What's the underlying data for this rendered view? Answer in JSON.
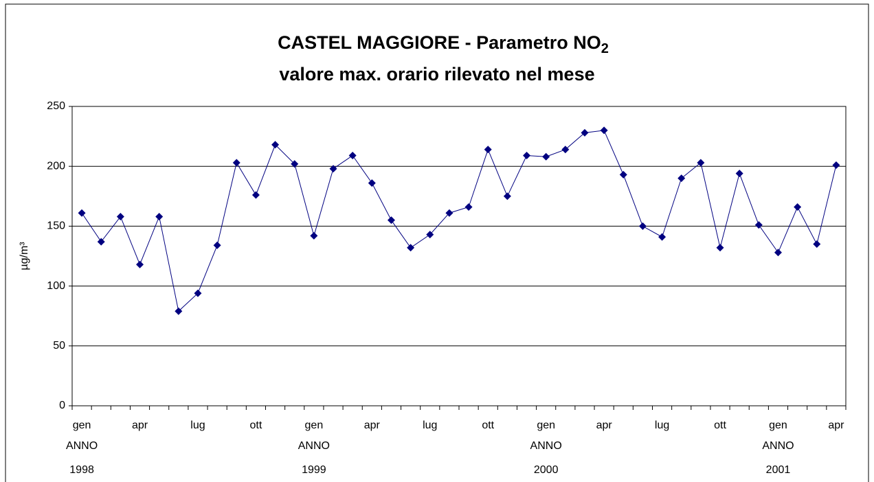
{
  "chart_data": {
    "type": "line",
    "title": "CASTEL MAGGIORE - Parametro NO",
    "title_subscript": "2",
    "subtitle": "valore max. orario rilevato nel mese",
    "y_label": "µg/m³",
    "categories": [
      "gen",
      null,
      null,
      "apr",
      null,
      null,
      "lug",
      null,
      null,
      "ott",
      null,
      null,
      "gen",
      null,
      null,
      "apr",
      null,
      null,
      "lug",
      null,
      null,
      "ott",
      null,
      null,
      "gen",
      null,
      null,
      "apr",
      null,
      null,
      "lug",
      null,
      null,
      "ott",
      null,
      null,
      "gen",
      null,
      null,
      "apr"
    ],
    "group_labels": [
      "ANNO",
      null,
      null,
      null,
      null,
      null,
      null,
      null,
      null,
      null,
      null,
      null,
      "ANNO",
      null,
      null,
      null,
      null,
      null,
      null,
      null,
      null,
      null,
      null,
      null,
      "ANNO",
      null,
      null,
      null,
      null,
      null,
      null,
      null,
      null,
      null,
      null,
      null,
      "ANNO",
      null,
      null,
      null
    ],
    "years": [
      "1998",
      null,
      null,
      null,
      null,
      null,
      null,
      null,
      null,
      null,
      null,
      null,
      "1999",
      null,
      null,
      null,
      null,
      null,
      null,
      null,
      null,
      null,
      null,
      null,
      "2000",
      null,
      null,
      null,
      null,
      null,
      null,
      null,
      null,
      null,
      null,
      null,
      "2001",
      null,
      null,
      null
    ],
    "values": [
      161,
      137,
      158,
      118,
      158,
      79,
      94,
      134,
      203,
      176,
      218,
      202,
      142,
      198,
      209,
      186,
      155,
      132,
      143,
      161,
      166,
      214,
      175,
      209,
      208,
      214,
      228,
      230,
      193,
      150,
      141,
      190,
      203,
      132,
      194,
      151,
      128,
      166,
      135,
      201
    ],
    "color": "#000080",
    "ylim": [
      0,
      250
    ],
    "yticks": [
      0,
      50,
      100,
      150,
      200,
      250
    ],
    "grid": true
  }
}
